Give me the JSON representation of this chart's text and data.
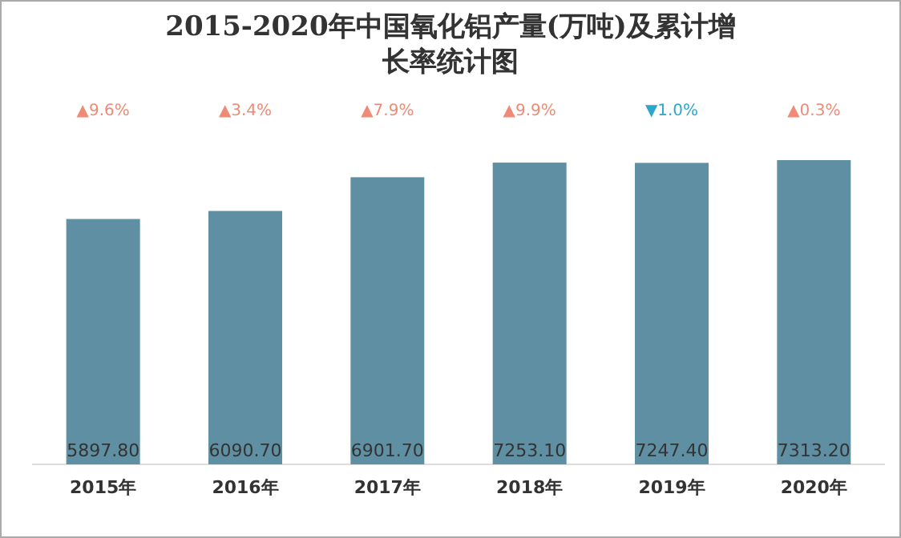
{
  "chart_data": {
    "type": "bar",
    "title": "2015-2020年中国氧化铝产量(万吨)及累计增长率统计图",
    "categories": [
      "2015年",
      "2016年",
      "2017年",
      "2018年",
      "2019年",
      "2020年"
    ],
    "values": [
      5897.8,
      6090.7,
      6901.7,
      7253.1,
      7247.4,
      7313.2
    ],
    "color": "#5f8fa2",
    "data_labels": true,
    "value_labels": [
      "5897.80",
      "6090.70",
      "6901.70",
      "7253.10",
      "7247.40",
      "7313.20"
    ],
    "annotations": [
      "▲9.6%",
      "▲3.4%",
      "▲7.9%",
      "▲9.9%",
      "▼1.0%",
      "▲0.3%"
    ]
  }
}
